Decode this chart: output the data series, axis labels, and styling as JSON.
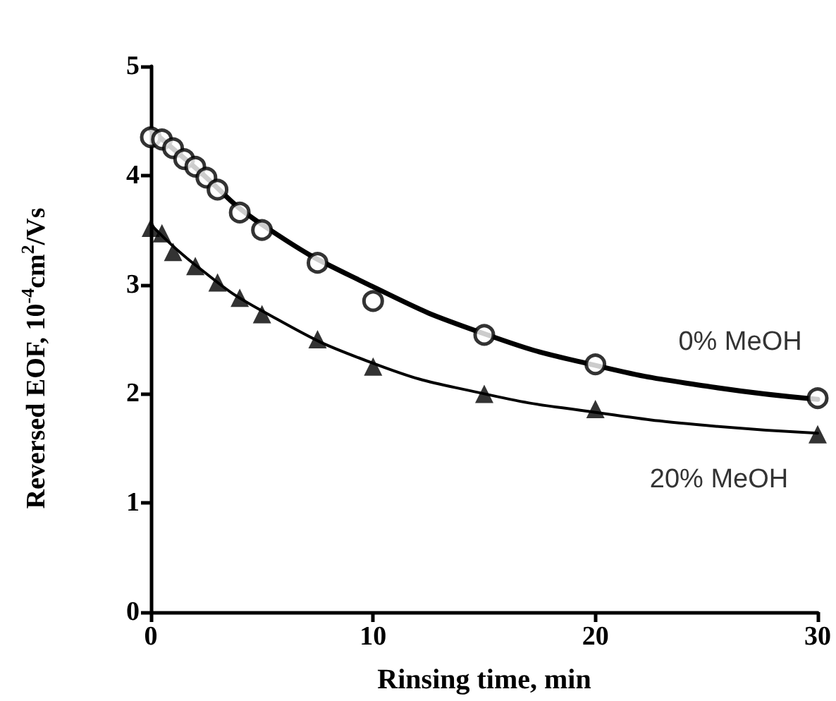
{
  "chart_data": {
    "type": "scatter",
    "xlabel": "Rinsing time, min",
    "ylabel": "Reversed EOF, 10$^{-4}$cm$^{2}$/Vs",
    "xlim": [
      0,
      30
    ],
    "xticks": [
      0,
      10,
      20,
      30
    ],
    "ylim": [
      0,
      5
    ],
    "yticks": [
      0,
      1,
      2,
      3,
      4,
      5
    ],
    "grid": false,
    "legend": false,
    "series": [
      {
        "name": "0% MeOH",
        "color": "#000000",
        "marker": "circle",
        "x": [
          0,
          0.5,
          1,
          1.5,
          2,
          2.5,
          3,
          4,
          5,
          7.5,
          10,
          15,
          20,
          30
        ],
        "values": [
          4.35,
          4.33,
          4.25,
          4.15,
          4.08,
          3.98,
          3.87,
          3.66,
          3.5,
          3.2,
          2.85,
          2.54,
          2.27,
          1.96
        ]
      },
      {
        "name": "20% MeOH",
        "color": "#000000",
        "marker": "triangle",
        "x": [
          0,
          0.5,
          1,
          2,
          3,
          4,
          5,
          7.5,
          10,
          15,
          20,
          30
        ],
        "values": [
          3.52,
          3.47,
          3.3,
          3.17,
          3.02,
          2.88,
          2.73,
          2.5,
          2.25,
          2.0,
          1.86,
          1.63
        ]
      },
      {
        "type": "line",
        "color": "#000000",
        "marker": "none",
        "x": [
          0,
          2,
          5,
          10,
          15,
          20,
          25,
          30
        ],
        "values": [
          4.42,
          4.07,
          3.55,
          2.98,
          2.55,
          2.26,
          2.07,
          1.95
        ]
      },
      {
        "type": "line",
        "color": "#000000",
        "marker": "none",
        "x": [
          0,
          2,
          5,
          10,
          15,
          20,
          25,
          30
        ],
        "values": [
          3.55,
          3.18,
          2.76,
          2.28,
          2.0,
          1.83,
          1.71,
          1.64
        ]
      }
    ]
  }
}
